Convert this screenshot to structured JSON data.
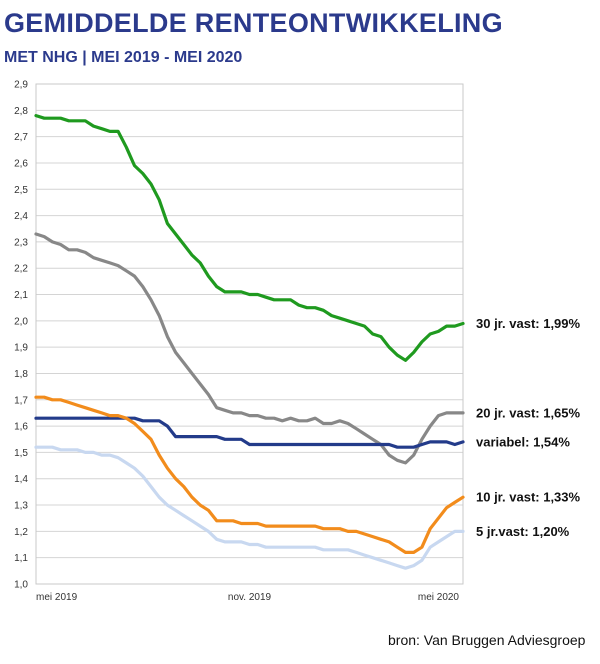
{
  "title": "GEMIDDELDE RENTEONTWIKKELING",
  "subtitle": "MET NHG | MEI 2019 - MEI 2020",
  "source": "bron: Van Bruggen Adviesgroep",
  "chart_data": {
    "type": "line",
    "ylim": [
      1.0,
      2.9
    ],
    "yticks": [
      "1,0",
      "1,1",
      "1,2",
      "1,3",
      "1,4",
      "1,5",
      "1,6",
      "1,7",
      "1,8",
      "1,9",
      "2,0",
      "2,1",
      "2,2",
      "2,3",
      "2,4",
      "2,5",
      "2,6",
      "2,7",
      "2,8",
      "2,9"
    ],
    "xlim": [
      0,
      52
    ],
    "xticks": [
      {
        "pos": 0,
        "label": "mei 2019"
      },
      {
        "pos": 26,
        "label": "nov. 2019"
      },
      {
        "pos": 52,
        "label": "mei 2020"
      }
    ],
    "grid": true,
    "series": [
      {
        "name": "30 jr. vast",
        "label": "30 jr. vast: 1,99%",
        "color": "#1f9a1f",
        "x": [
          0,
          1,
          2,
          3,
          4,
          5,
          6,
          7,
          8,
          9,
          10,
          11,
          12,
          13,
          14,
          15,
          16,
          17,
          18,
          19,
          20,
          21,
          22,
          23,
          24,
          25,
          26,
          27,
          28,
          29,
          30,
          31,
          32,
          33,
          34,
          35,
          36,
          37,
          38,
          39,
          40,
          41,
          42,
          43,
          44,
          45,
          46,
          47,
          48,
          49,
          50,
          51,
          52
        ],
        "values": [
          2.78,
          2.77,
          2.77,
          2.77,
          2.76,
          2.76,
          2.76,
          2.74,
          2.73,
          2.72,
          2.72,
          2.66,
          2.59,
          2.56,
          2.52,
          2.46,
          2.37,
          2.33,
          2.29,
          2.25,
          2.22,
          2.17,
          2.13,
          2.11,
          2.11,
          2.11,
          2.1,
          2.1,
          2.09,
          2.08,
          2.08,
          2.08,
          2.06,
          2.05,
          2.05,
          2.04,
          2.02,
          2.01,
          2.0,
          1.99,
          1.98,
          1.95,
          1.94,
          1.9,
          1.87,
          1.85,
          1.88,
          1.92,
          1.95,
          1.96,
          1.98,
          1.98,
          1.99
        ]
      },
      {
        "name": "20 jr. vast",
        "label": "20 jr. vast: 1,65%",
        "color": "#888888",
        "x": [
          0,
          1,
          2,
          3,
          4,
          5,
          6,
          7,
          8,
          9,
          10,
          11,
          12,
          13,
          14,
          15,
          16,
          17,
          18,
          19,
          20,
          21,
          22,
          23,
          24,
          25,
          26,
          27,
          28,
          29,
          30,
          31,
          32,
          33,
          34,
          35,
          36,
          37,
          38,
          39,
          40,
          41,
          42,
          43,
          44,
          45,
          46,
          47,
          48,
          49,
          50,
          51,
          52
        ],
        "values": [
          2.33,
          2.32,
          2.3,
          2.29,
          2.27,
          2.27,
          2.26,
          2.24,
          2.23,
          2.22,
          2.21,
          2.19,
          2.17,
          2.13,
          2.08,
          2.02,
          1.94,
          1.88,
          1.84,
          1.8,
          1.76,
          1.72,
          1.67,
          1.66,
          1.65,
          1.65,
          1.64,
          1.64,
          1.63,
          1.63,
          1.62,
          1.63,
          1.62,
          1.62,
          1.63,
          1.61,
          1.61,
          1.62,
          1.61,
          1.59,
          1.57,
          1.55,
          1.53,
          1.49,
          1.47,
          1.46,
          1.49,
          1.55,
          1.6,
          1.64,
          1.65,
          1.65,
          1.65
        ]
      },
      {
        "name": "variabel",
        "label": "variabel: 1,54%",
        "color": "#233b8a",
        "x": [
          0,
          1,
          2,
          3,
          4,
          5,
          6,
          7,
          8,
          9,
          10,
          11,
          12,
          13,
          14,
          15,
          16,
          17,
          18,
          19,
          20,
          21,
          22,
          23,
          24,
          25,
          26,
          27,
          28,
          29,
          30,
          31,
          32,
          33,
          34,
          35,
          36,
          37,
          38,
          39,
          40,
          41,
          42,
          43,
          44,
          45,
          46,
          47,
          48,
          49,
          50,
          51,
          52
        ],
        "values": [
          1.63,
          1.63,
          1.63,
          1.63,
          1.63,
          1.63,
          1.63,
          1.63,
          1.63,
          1.63,
          1.63,
          1.63,
          1.63,
          1.62,
          1.62,
          1.62,
          1.6,
          1.56,
          1.56,
          1.56,
          1.56,
          1.56,
          1.56,
          1.55,
          1.55,
          1.55,
          1.53,
          1.53,
          1.53,
          1.53,
          1.53,
          1.53,
          1.53,
          1.53,
          1.53,
          1.53,
          1.53,
          1.53,
          1.53,
          1.53,
          1.53,
          1.53,
          1.53,
          1.53,
          1.52,
          1.52,
          1.52,
          1.53,
          1.54,
          1.54,
          1.54,
          1.53,
          1.54
        ]
      },
      {
        "name": "10 jr. vast",
        "label": "10 jr. vast: 1,33%",
        "color": "#f28c1c",
        "x": [
          0,
          1,
          2,
          3,
          4,
          5,
          6,
          7,
          8,
          9,
          10,
          11,
          12,
          13,
          14,
          15,
          16,
          17,
          18,
          19,
          20,
          21,
          22,
          23,
          24,
          25,
          26,
          27,
          28,
          29,
          30,
          31,
          32,
          33,
          34,
          35,
          36,
          37,
          38,
          39,
          40,
          41,
          42,
          43,
          44,
          45,
          46,
          47,
          48,
          49,
          50,
          51,
          52
        ],
        "values": [
          1.71,
          1.71,
          1.7,
          1.7,
          1.69,
          1.68,
          1.67,
          1.66,
          1.65,
          1.64,
          1.64,
          1.63,
          1.61,
          1.58,
          1.55,
          1.49,
          1.44,
          1.4,
          1.37,
          1.33,
          1.3,
          1.28,
          1.24,
          1.24,
          1.24,
          1.23,
          1.23,
          1.23,
          1.22,
          1.22,
          1.22,
          1.22,
          1.22,
          1.22,
          1.22,
          1.21,
          1.21,
          1.21,
          1.2,
          1.2,
          1.19,
          1.18,
          1.17,
          1.16,
          1.14,
          1.12,
          1.12,
          1.14,
          1.21,
          1.25,
          1.29,
          1.31,
          1.33
        ]
      },
      {
        "name": "5 jr.vast",
        "label": "5 jr.vast: 1,20%",
        "color": "#c8d8f0",
        "x": [
          0,
          1,
          2,
          3,
          4,
          5,
          6,
          7,
          8,
          9,
          10,
          11,
          12,
          13,
          14,
          15,
          16,
          17,
          18,
          19,
          20,
          21,
          22,
          23,
          24,
          25,
          26,
          27,
          28,
          29,
          30,
          31,
          32,
          33,
          34,
          35,
          36,
          37,
          38,
          39,
          40,
          41,
          42,
          43,
          44,
          45,
          46,
          47,
          48,
          49,
          50,
          51,
          52
        ],
        "values": [
          1.52,
          1.52,
          1.52,
          1.51,
          1.51,
          1.51,
          1.5,
          1.5,
          1.49,
          1.49,
          1.48,
          1.46,
          1.44,
          1.41,
          1.37,
          1.33,
          1.3,
          1.28,
          1.26,
          1.24,
          1.22,
          1.2,
          1.17,
          1.16,
          1.16,
          1.16,
          1.15,
          1.15,
          1.14,
          1.14,
          1.14,
          1.14,
          1.14,
          1.14,
          1.14,
          1.13,
          1.13,
          1.13,
          1.13,
          1.12,
          1.11,
          1.1,
          1.09,
          1.08,
          1.07,
          1.06,
          1.07,
          1.09,
          1.14,
          1.16,
          1.18,
          1.2,
          1.2
        ]
      }
    ]
  }
}
